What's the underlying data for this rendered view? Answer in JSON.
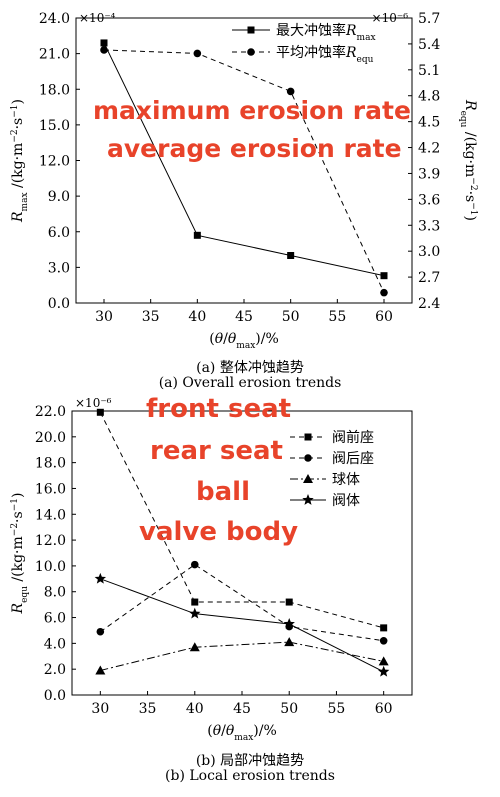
{
  "chart_data": [
    {
      "type": "line",
      "x": [
        30,
        40,
        50,
        60
      ],
      "xlabel": "(θ/θ_max)/%",
      "xlim": [
        27,
        63
      ],
      "xticks": [
        30,
        35,
        40,
        45,
        50,
        55,
        60
      ],
      "y_left": {
        "label": "R_max /(kg·m⁻²·s⁻¹)",
        "multiplier": "×10⁻⁴",
        "lim": [
          0,
          24
        ],
        "ticks": [
          "0.0",
          "3.0",
          "6.0",
          "9.0",
          "12.0",
          "15.0",
          "18.0",
          "21.0",
          "24.0"
        ]
      },
      "y_right": {
        "label": "R_equ /(kg·m⁻²·s⁻¹)",
        "multiplier": "×10⁻⁶",
        "lim": [
          2.4,
          5.7
        ],
        "ticks": [
          "2.4",
          "2.7",
          "3.0",
          "3.3",
          "3.6",
          "3.9",
          "4.2",
          "4.5",
          "4.8",
          "5.1",
          "5.4",
          "5.7"
        ]
      },
      "series": [
        {
          "name": "最大冲蚀率R_max",
          "axis": "left",
          "marker": "square",
          "style": "solid",
          "values": [
            21.9,
            5.7,
            4.0,
            2.3
          ]
        },
        {
          "name": "平均冲蚀率R_equ",
          "axis": "right",
          "marker": "circle",
          "style": "dashed",
          "values": [
            5.33,
            5.29,
            4.85,
            2.52
          ]
        }
      ],
      "caption_cn": "(a)  整体冲蚀趋势",
      "caption_en": "(a)  Overall erosion trends",
      "overlay_text": [
        "maximum erosion rate",
        "average erosion rate"
      ]
    },
    {
      "type": "line",
      "x": [
        30,
        40,
        50,
        60
      ],
      "xlabel": "(θ/θ_max)/%",
      "xlim": [
        27,
        63
      ],
      "xticks": [
        30,
        35,
        40,
        45,
        50,
        55,
        60
      ],
      "y_left": {
        "label": "R_equ /(kg·m⁻²·s⁻¹)",
        "multiplier": "×10⁻⁶",
        "lim": [
          0,
          22
        ],
        "ticks": [
          "0.0",
          "2.0",
          "4.0",
          "6.0",
          "8.0",
          "10.0",
          "12.0",
          "14.0",
          "16.0",
          "18.0",
          "20.0",
          "22.0"
        ]
      },
      "series": [
        {
          "name": "阀前座",
          "marker": "square",
          "style": "dashed",
          "values": [
            21.9,
            7.2,
            7.2,
            5.2
          ]
        },
        {
          "name": "阀后座",
          "marker": "circle",
          "style": "dashed",
          "values": [
            4.9,
            10.1,
            5.3,
            4.2
          ]
        },
        {
          "name": "球体",
          "marker": "triangle",
          "style": "dashdot",
          "values": [
            1.9,
            3.7,
            4.1,
            2.6
          ]
        },
        {
          "name": "阀体",
          "marker": "star",
          "style": "solid",
          "values": [
            9.0,
            6.3,
            5.5,
            1.8
          ]
        }
      ],
      "caption_cn": "(b)  局部冲蚀趋势",
      "caption_en": "(b)  Local erosion trends",
      "overlay_text": [
        "front seat",
        "rear seat",
        "ball",
        "valve body"
      ]
    }
  ]
}
